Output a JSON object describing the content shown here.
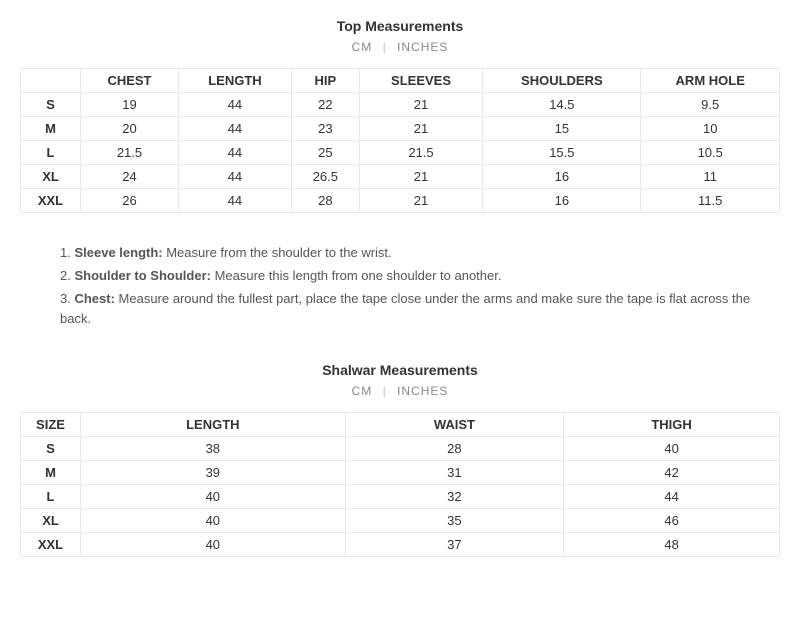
{
  "colors": {
    "background": "#ffffff",
    "text": "#333333",
    "muted": "#888888",
    "border": "#e8e8e8",
    "sep": "#bbbbbb"
  },
  "typography": {
    "base_fontsize": 13,
    "title_fontsize": 14,
    "unit_fontsize": 12,
    "font_family": "Arial, Helvetica, sans-serif"
  },
  "top": {
    "title": "Top Measurements",
    "unit_cm": "CM",
    "unit_in": "INCHES",
    "columns": [
      "",
      "CHEST",
      "LENGTH",
      "HIP",
      "SLEEVES",
      "SHOULDERS",
      "ARM HOLE"
    ],
    "rows": [
      {
        "size": "S",
        "values": [
          "19",
          "44",
          "22",
          "21",
          "14.5",
          "9.5"
        ]
      },
      {
        "size": "M",
        "values": [
          "20",
          "44",
          "23",
          "21",
          "15",
          "10"
        ]
      },
      {
        "size": "L",
        "values": [
          "21.5",
          "44",
          "25",
          "21.5",
          "15.5",
          "10.5"
        ]
      },
      {
        "size": "XL",
        "values": [
          "24",
          "44",
          "26.5",
          "21",
          "16",
          "11"
        ]
      },
      {
        "size": "XXL",
        "values": [
          "26",
          "44",
          "28",
          "21",
          "16",
          "11.5"
        ]
      }
    ]
  },
  "notes": [
    {
      "num": "1.",
      "label": "Sleeve length:",
      "text": " Measure from the shoulder to the wrist."
    },
    {
      "num": "2.",
      "label": "Shoulder to Shoulder:",
      "text": " Measure this length from one shoulder to another."
    },
    {
      "num": "3.",
      "label": "Chest:",
      "text": " Measure around the fullest part, place the tape close under the arms and make sure the tape is flat across the back."
    }
  ],
  "shalwar": {
    "title": "Shalwar Measurements",
    "unit_cm": "CM",
    "unit_in": "INCHES",
    "columns": [
      "SIZE",
      "LENGTH",
      "WAIST",
      "THIGH"
    ],
    "rows": [
      {
        "size": "S",
        "values": [
          "38",
          "28",
          "40"
        ]
      },
      {
        "size": "M",
        "values": [
          "39",
          "31",
          "42"
        ]
      },
      {
        "size": "L",
        "values": [
          "40",
          "32",
          "44"
        ]
      },
      {
        "size": "XL",
        "values": [
          "40",
          "35",
          "46"
        ]
      },
      {
        "size": "XXL",
        "values": [
          "40",
          "37",
          "48"
        ]
      }
    ]
  }
}
